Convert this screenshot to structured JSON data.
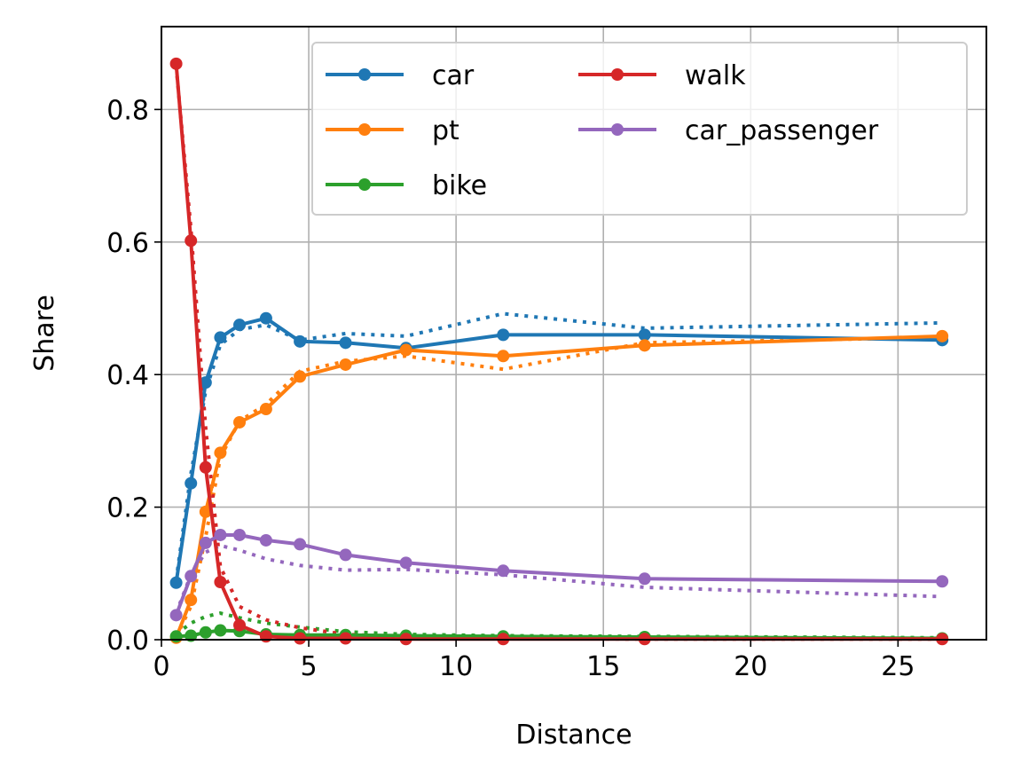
{
  "chart_data": {
    "type": "line",
    "xlabel": "Distance",
    "ylabel": "Share",
    "xlim": [
      0,
      28
    ],
    "ylim": [
      0,
      0.925
    ],
    "xticks": [
      0,
      5,
      10,
      15,
      20,
      25
    ],
    "xtick_labels": [
      "0",
      "5",
      "10",
      "15",
      "20",
      "25"
    ],
    "yticks": [
      0,
      0.2,
      0.4,
      0.6,
      0.8
    ],
    "ytick_labels": [
      "0.0",
      "0.2",
      "0.4",
      "0.6",
      "0.8"
    ],
    "grid": true,
    "legend_position": "top-right",
    "legend_columns": 2,
    "x": [
      0.5,
      1.0,
      1.5,
      2.0,
      2.65,
      3.55,
      4.7,
      6.25,
      8.3,
      11.6,
      16.4,
      26.5
    ],
    "series": [
      {
        "name": "car",
        "color": "#1f77b4",
        "values": [
          0.086,
          0.236,
          0.388,
          0.456,
          0.475,
          0.485,
          0.45,
          0.448,
          0.44,
          0.46,
          0.46,
          0.452
        ],
        "reference": [
          0.09,
          0.25,
          0.375,
          0.445,
          0.468,
          0.475,
          0.452,
          0.462,
          0.458,
          0.492,
          0.47,
          0.478
        ]
      },
      {
        "name": "pt",
        "color": "#ff7f0e",
        "values": [
          0.003,
          0.06,
          0.193,
          0.282,
          0.328,
          0.348,
          0.397,
          0.415,
          0.437,
          0.428,
          0.444,
          0.458
        ],
        "reference": [
          0.004,
          0.05,
          0.155,
          0.275,
          0.33,
          0.355,
          0.405,
          0.42,
          0.428,
          0.408,
          0.448,
          0.456
        ]
      },
      {
        "name": "bike",
        "color": "#2ca02c",
        "values": [
          0.005,
          0.006,
          0.011,
          0.014,
          0.013,
          0.008,
          0.007,
          0.007,
          0.006,
          0.005,
          0.004,
          0.002
        ],
        "reference": [
          0.008,
          0.025,
          0.035,
          0.04,
          0.033,
          0.025,
          0.019,
          0.012,
          0.008,
          0.006,
          0.005,
          0.003
        ]
      },
      {
        "name": "walk",
        "color": "#d62728",
        "values": [
          0.869,
          0.602,
          0.26,
          0.087,
          0.022,
          0.005,
          0.002,
          0.002,
          0.001,
          0.001,
          0.001,
          0.001
        ],
        "reference": [
          0.865,
          0.62,
          0.32,
          0.11,
          0.05,
          0.03,
          0.018,
          0.008,
          0.004,
          0.002,
          0.001,
          0.001
        ]
      },
      {
        "name": "car_passenger",
        "color": "#9467bd",
        "values": [
          0.037,
          0.096,
          0.146,
          0.158,
          0.158,
          0.15,
          0.144,
          0.128,
          0.116,
          0.104,
          0.092,
          0.088
        ],
        "reference": [
          0.04,
          0.098,
          0.132,
          0.142,
          0.135,
          0.122,
          0.112,
          0.105,
          0.106,
          0.098,
          0.079,
          0.065
        ]
      }
    ]
  }
}
